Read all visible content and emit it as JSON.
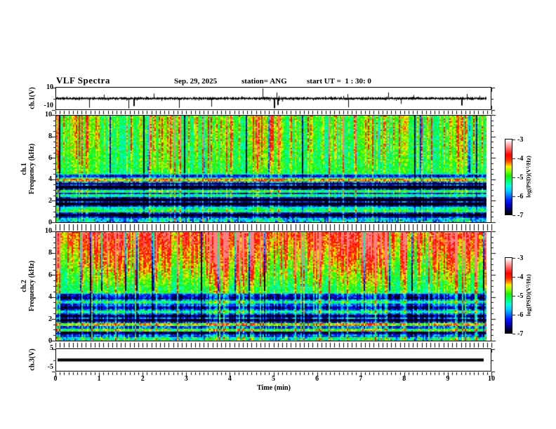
{
  "title": {
    "main": "VLF Spectra",
    "date": "Sep. 29, 2025",
    "station": "station= ANG",
    "start_ut": "start UT =  1 : 30: 0"
  },
  "x_axis": {
    "label": "Time (min)",
    "range": [
      0,
      10
    ],
    "tick_labels": [
      "0",
      "1",
      "2",
      "3",
      "4",
      "5",
      "6",
      "7",
      "8",
      "9",
      "10"
    ],
    "minor_step_min": 0.1
  },
  "panels": {
    "ch1_wave": {
      "ylabel": "ch.1(V)",
      "ymax_label": "10",
      "ymin_label": "-10",
      "y_range": [
        -10,
        10
      ]
    },
    "spec1": {
      "name": "ch.1",
      "axis_label": "Frequency (kHz)",
      "tick_labels": [
        "0",
        "2",
        "4",
        "6",
        "8",
        "10"
      ],
      "y_range": [
        0,
        10
      ],
      "y_minor_step": 0.5
    },
    "spec2": {
      "name": "ch.2",
      "axis_label": "Frequency (kHz)",
      "tick_labels": [
        "0",
        "2",
        "4",
        "6",
        "8",
        "10"
      ],
      "y_range": [
        0,
        10
      ],
      "y_minor_step": 0.5
    },
    "ch3_wave": {
      "ylabel": "ch.3(V)",
      "ymax_label": "5",
      "ymin_label": "-5",
      "y_range": [
        -5,
        5
      ]
    }
  },
  "colorbars": [
    {
      "label": "log(PSD)(V²/Hz)",
      "tick_labels": [
        "-3",
        "-4",
        "-5",
        "-6",
        "-7"
      ],
      "range": [
        -7,
        -3
      ]
    },
    {
      "label": "log(PSD)(V²/Hz)",
      "tick_labels": [
        "-3",
        "-4",
        "-5",
        "-6",
        "-7"
      ],
      "range": [
        -7,
        -3
      ]
    }
  ],
  "colormap": [
    [
      0.0,
      "#000000"
    ],
    [
      0.06,
      "#000060"
    ],
    [
      0.12,
      "#0000c8"
    ],
    [
      0.19,
      "#0022ff"
    ],
    [
      0.25,
      "#0077ff"
    ],
    [
      0.31,
      "#00c8ff"
    ],
    [
      0.38,
      "#00ffdd"
    ],
    [
      0.45,
      "#00ff66"
    ],
    [
      0.52,
      "#22ee00"
    ],
    [
      0.58,
      "#88ff00"
    ],
    [
      0.64,
      "#ffee00"
    ],
    [
      0.68,
      "#ff8800"
    ],
    [
      0.73,
      "#ff2a00"
    ],
    [
      0.8,
      "#ff0000"
    ],
    [
      0.88,
      "#ff6666"
    ],
    [
      0.95,
      "#ffc0c0"
    ],
    [
      1.0,
      "#ffffff"
    ]
  ],
  "chart_data": [
    {
      "id": "ch1_waveform",
      "type": "line",
      "x_range_min": [
        0,
        10
      ],
      "y_range_V": [
        -10,
        10
      ],
      "baseline_V": 0,
      "noise_band_V": 1.4,
      "seed": 11,
      "down_spikes": [
        [
          0.76,
          -8.5
        ],
        [
          1.66,
          -9.2
        ],
        [
          1.78,
          -7.0
        ],
        [
          2.82,
          -8.8
        ],
        [
          3.56,
          -7.5
        ],
        [
          5.0,
          -9.0
        ],
        [
          5.08,
          -6.0
        ],
        [
          6.7,
          -8.2
        ],
        [
          7.9,
          -5.0
        ],
        [
          9.3,
          -6.5
        ]
      ],
      "up_spikes": [
        [
          1.1,
          3.5
        ],
        [
          2.24,
          4.5
        ],
        [
          4.73,
          9.3
        ],
        [
          5.05,
          5.5
        ],
        [
          6.68,
          4.0
        ],
        [
          7.62,
          5.5
        ],
        [
          8.2,
          3.2
        ],
        [
          9.42,
          4.2
        ]
      ]
    },
    {
      "id": "ch1_spectrogram",
      "type": "heatmap",
      "x_range_min": [
        0,
        10
      ],
      "y_range_kHz": [
        0,
        10
      ],
      "color_range_logPSD": [
        -7,
        -3
      ],
      "split_kHz": 4.55,
      "base_high_logPSD": -5.1,
      "high_gradient_per_kHz": 0.04,
      "base_low_logPSD": -6.4,
      "transition_kHz": 1.15,
      "bottom_band_logPSD": -5.8,
      "red_streak_prob": 0.045,
      "bright_streak_prob": 0.32,
      "dark_streak_prob": 0.05,
      "low_streak_factor": 0.5,
      "harmonic_line_spacing_kHz": 0.33,
      "seed": 12
    },
    {
      "id": "ch2_spectrogram",
      "type": "heatmap",
      "x_range_min": [
        0,
        10
      ],
      "y_range_kHz": [
        0,
        10
      ],
      "color_range_logPSD": [
        -7,
        -3
      ],
      "split_kHz": 4.6,
      "base_high_logPSD": -5.3,
      "high_gradient_per_kHz": 0.22,
      "base_low_logPSD": -6.3,
      "transition_kHz": 0.9,
      "bottom_band_logPSD": -5.55,
      "red_streak_prob": 0.13,
      "bright_streak_prob": 0.5,
      "dark_streak_prob": 0.05,
      "low_streak_factor": 0.65,
      "harmonic_line_spacing_kHz": 0.33,
      "seed": 23
    },
    {
      "id": "ch3_waveform",
      "type": "line",
      "x_range_min": [
        0,
        10
      ],
      "y_range_V": [
        -5,
        5
      ],
      "constant_V": 0,
      "line_thickness_V": 1.0
    }
  ]
}
